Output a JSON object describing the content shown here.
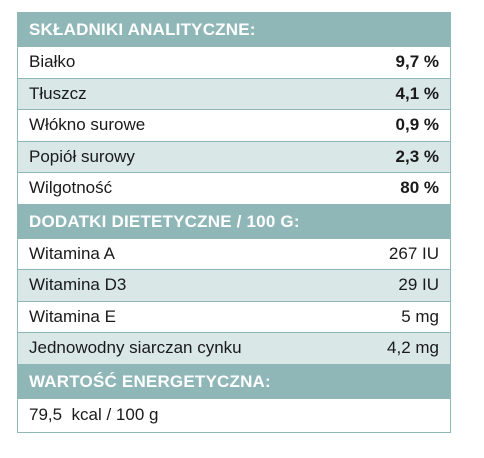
{
  "colors": {
    "header_bg": "#8fb7b8",
    "alt_row_bg": "#d9e7e7",
    "border": "#8fb7b8",
    "text": "#1a1a1a"
  },
  "analytical": {
    "title": "SKŁADNIKI ANALITYCZNE:",
    "rows": [
      {
        "name": "Białko",
        "value": "9,7 %"
      },
      {
        "name": "Tłuszcz",
        "value": "4,1 %"
      },
      {
        "name": "Włókno surowe",
        "value": "0,9 %"
      },
      {
        "name": "Popiół surowy",
        "value": "2,3 %"
      },
      {
        "name": "Wilgotność",
        "value": "80 %"
      }
    ]
  },
  "additives": {
    "title": "DODATKI DIETETYCZNE / 100 G:",
    "rows": [
      {
        "name": "Witamina A",
        "value": "267 IU"
      },
      {
        "name": "Witamina D3",
        "value": "29 IU"
      },
      {
        "name": "Witamina E",
        "value": "5 mg"
      },
      {
        "name": "Jednowodny siarczan cynku",
        "value": "4,2 mg"
      }
    ]
  },
  "energy": {
    "title": "WARTOŚĆ ENERGETYCZNA:",
    "value": "79,5  kcal / 100 g"
  }
}
